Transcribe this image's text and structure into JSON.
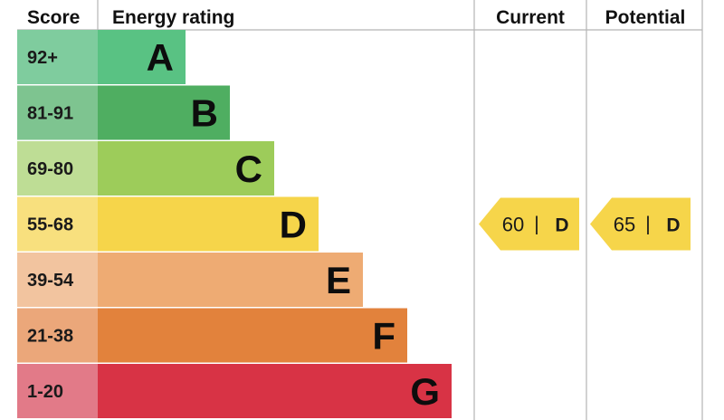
{
  "chart_data": {
    "type": "table",
    "headers": {
      "score": "Score",
      "rating": "Energy rating",
      "current": "Current",
      "potential": "Potential"
    },
    "bands": [
      {
        "score": "92+",
        "letter": "A",
        "color": "#59c283",
        "score_color": "#7fcc9e"
      },
      {
        "score": "81-91",
        "letter": "B",
        "color": "#4fae61",
        "score_color": "#7ec490"
      },
      {
        "score": "69-80",
        "letter": "C",
        "color": "#9dcc5a",
        "score_color": "#bedd95"
      },
      {
        "score": "55-68",
        "letter": "D",
        "color": "#f6d54a",
        "score_color": "#f8e07e"
      },
      {
        "score": "39-54",
        "letter": "E",
        "color": "#eeab73",
        "score_color": "#f2c49f"
      },
      {
        "score": "21-38",
        "letter": "F",
        "color": "#e2823c",
        "score_color": "#eba77a"
      },
      {
        "score": "1-20",
        "letter": "G",
        "color": "#d83345",
        "score_color": "#e27a88"
      }
    ],
    "current": {
      "value": 60,
      "letter": "D",
      "color": "#f6d54a"
    },
    "potential": {
      "value": 65,
      "letter": "D",
      "color": "#f6d54a"
    }
  }
}
